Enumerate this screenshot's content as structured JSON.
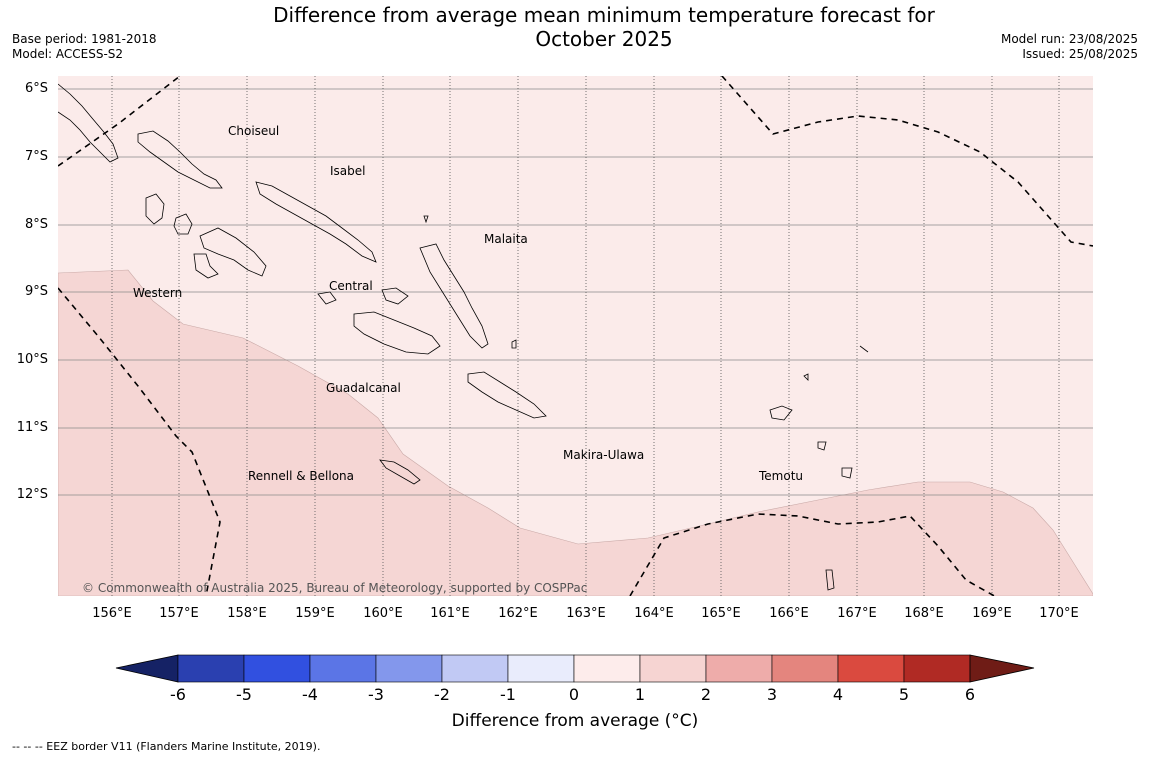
{
  "header": {
    "title_line1": "Difference from average mean minimum temperature forecast for",
    "title_line2": "October 2025",
    "base_period": "Base period: 1981-2018",
    "model": "Model: ACCESS-S2",
    "model_run": "Model run: 23/08/2025",
    "issued": "Issued: 25/08/2025"
  },
  "map": {
    "lat_labels": [
      "6°S",
      "7°S",
      "8°S",
      "9°S",
      "10°S",
      "11°S",
      "12°S"
    ],
    "lon_labels": [
      "156°E",
      "157°E",
      "158°E",
      "159°E",
      "160°E",
      "161°E",
      "162°E",
      "163°E",
      "164°E",
      "165°E",
      "166°E",
      "167°E",
      "168°E",
      "169°E",
      "170°E"
    ],
    "regions": {
      "choiseul": "Choiseul",
      "isabel": "Isabel",
      "malaita": "Malaita",
      "western": "Western",
      "central": "Central",
      "guadalcanal": "Guadalcanal",
      "makira": "Makira-Ulawa",
      "rennell": "Rennell & Bellona",
      "temotu": "Temotu"
    },
    "copyright": "© Commonwealth of Australia 2025, Bureau of Meteorology, supported by COSPPac",
    "fill_colors": {
      "zero_to_one": "#fbebea",
      "one_to_two": "#f5d6d4"
    }
  },
  "colorbar": {
    "ticks": [
      "-6",
      "-5",
      "-4",
      "-3",
      "-2",
      "-1",
      "0",
      "1",
      "2",
      "3",
      "4",
      "5",
      "6"
    ],
    "colors": [
      "#152265",
      "#2a40b0",
      "#3150e0",
      "#5b75e6",
      "#8397ec",
      "#c1c9f4",
      "#e9ecfc",
      "#fdeceb",
      "#f6d4d2",
      "#eeacaa",
      "#e4857e",
      "#da4a3f",
      "#b02a24",
      "#6f1c16"
    ],
    "label": "Difference from average (°C)"
  },
  "footnote": "--  --  -- EEZ border V11 (Flanders Marine Institute, 2019)."
}
